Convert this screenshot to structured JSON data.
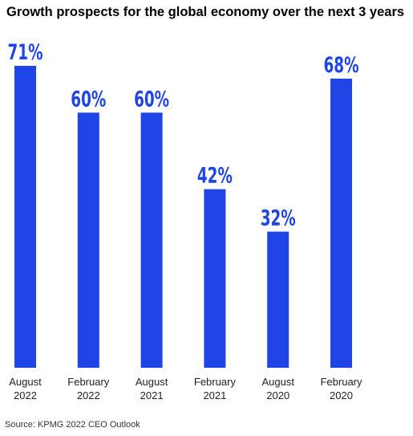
{
  "chart_data": {
    "type": "bar",
    "title": "Growth prospects for the global economy over the next 3 years",
    "categories": [
      [
        "August",
        "2022"
      ],
      [
        "February",
        "2022"
      ],
      [
        "August",
        "2021"
      ],
      [
        "February",
        "2021"
      ],
      [
        "August",
        "2020"
      ],
      [
        "February",
        "2020"
      ]
    ],
    "values": [
      71,
      60,
      60,
      42,
      32,
      68
    ],
    "data_labels": [
      "71%",
      "60%",
      "60%",
      "42%",
      "32%",
      "68%"
    ],
    "ylim": [
      0,
      71
    ],
    "grid": false,
    "legend": "none",
    "bar_color": "#1f45e6",
    "label_color": "#1f45e6"
  },
  "source": "Source: KPMG 2022 CEO Outlook"
}
